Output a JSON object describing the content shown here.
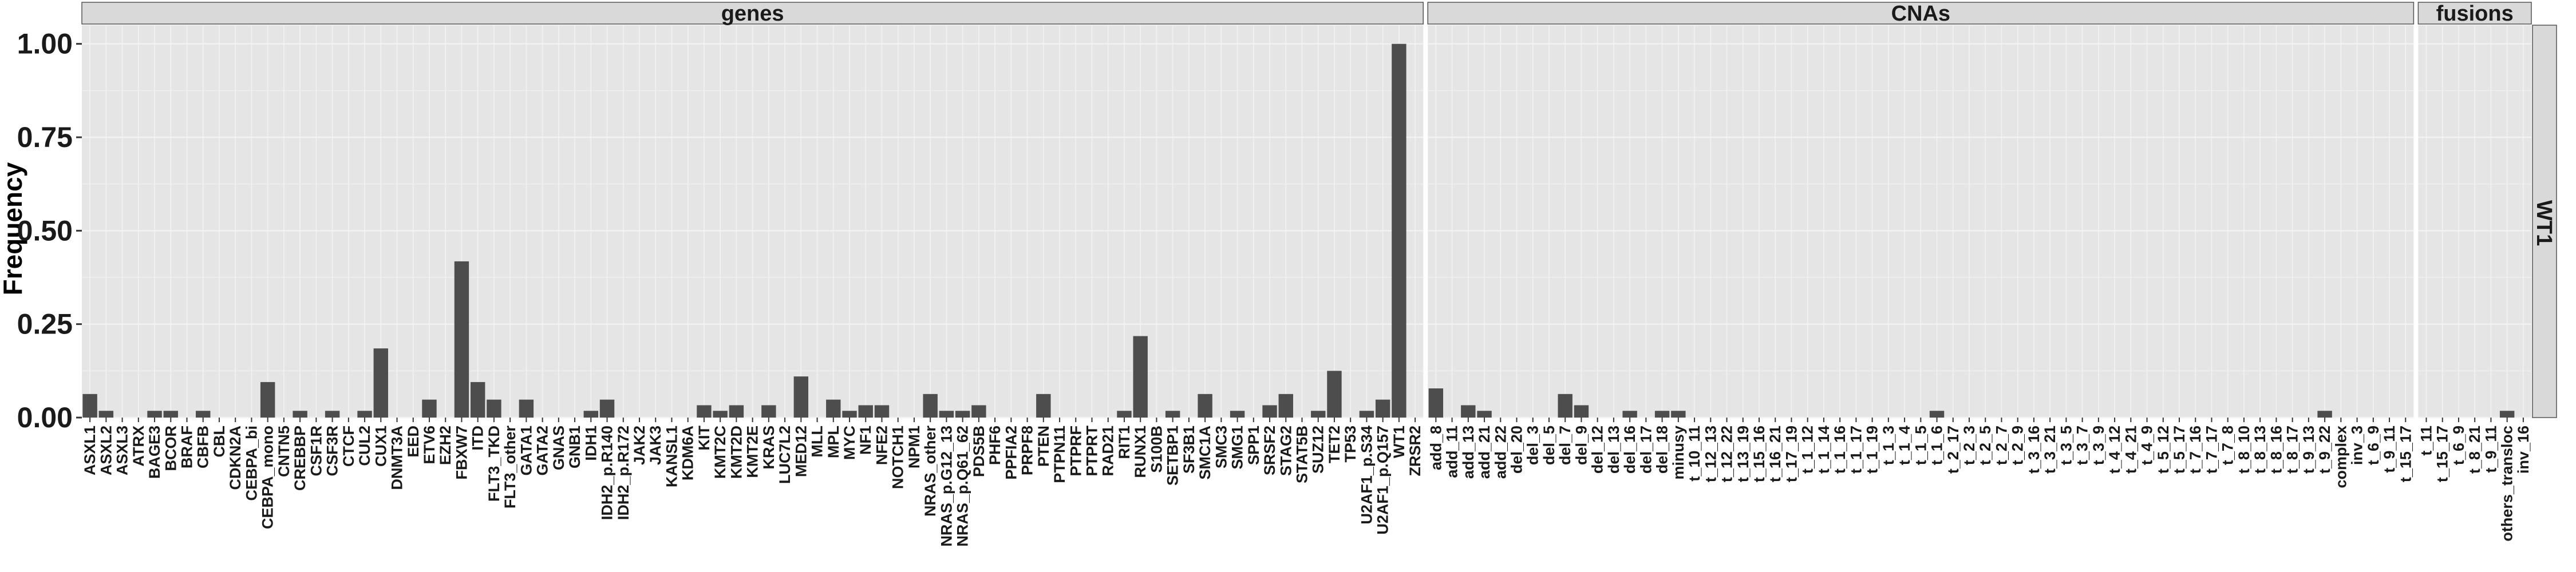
{
  "chart_data": {
    "type": "bar",
    "ylabel": "Frequency",
    "ylim": [
      0,
      1.05
    ],
    "yticks": [
      0.0,
      0.25,
      0.5,
      0.75,
      1.0
    ],
    "ytick_labels": [
      "0.00",
      "0.25",
      "0.50",
      "0.75",
      "1.00"
    ],
    "row_facet_label": "WT1",
    "grid": true,
    "colors": {
      "panel": "#e5e5e5",
      "grid": "#f2f2f2",
      "bar": "#4d4d4d",
      "strip": "#d9d9d9",
      "strip_border": "#555555",
      "text": "#1a1a1a"
    },
    "facets": [
      {
        "name": "genes",
        "categories": [
          "ASXL1",
          "ASXL2",
          "ASXL3",
          "ATRX",
          "BAGE3",
          "BCOR",
          "BRAF",
          "CBFB",
          "CBL",
          "CDKN2A",
          "CEBPA_bi",
          "CEBPA_mono",
          "CNTN5",
          "CREBBP",
          "CSF1R",
          "CSF3R",
          "CTCF",
          "CUL2",
          "CUX1",
          "DNMT3A",
          "EED",
          "ETV6",
          "EZH2",
          "FBXW7",
          "ITD",
          "FLT3_TKD",
          "FLT3_other",
          "GATA1",
          "GATA2",
          "GNAS",
          "GNB1",
          "IDH1",
          "IDH2_p.R140",
          "IDH2_p.R172",
          "JAK2",
          "JAK3",
          "KANSL1",
          "KDM6A",
          "KIT",
          "KMT2C",
          "KMT2D",
          "KMT2E",
          "KRAS",
          "LUC7L2",
          "MED12",
          "MLL",
          "MPL",
          "MYC",
          "NF1",
          "NFE2",
          "NOTCH1",
          "NPM1",
          "NRAS_other",
          "NRAS_p.G12_13",
          "NRAS_p.Q61_62",
          "PDS5B",
          "PHF6",
          "PPFIA2",
          "PRPF8",
          "PTEN",
          "PTPN11",
          "PTPRF",
          "PTPRT",
          "RAD21",
          "RIT1",
          "RUNX1",
          "S100B",
          "SETBP1",
          "SF3B1",
          "SMC1A",
          "SMC3",
          "SMG1",
          "SPP1",
          "SRSF2",
          "STAG2",
          "STAT5B",
          "SUZ12",
          "TET2",
          "TP53",
          "U2AF1_p.S34",
          "U2AF1_p.Q157",
          "WT1",
          "ZRSR2"
        ],
        "values": [
          0.063,
          0.018,
          0,
          0,
          0.018,
          0.018,
          0,
          0.018,
          0,
          0,
          0,
          0.095,
          0,
          0.018,
          0,
          0.018,
          0,
          0.018,
          0.185,
          0,
          0,
          0.048,
          0,
          0.418,
          0.095,
          0.048,
          0,
          0.048,
          0,
          0,
          0,
          0.018,
          0.048,
          0,
          0,
          0,
          0,
          0,
          0.033,
          0.018,
          0.033,
          0,
          0.033,
          0,
          0.11,
          0,
          0.048,
          0.018,
          0.033,
          0.033,
          0,
          0,
          0.063,
          0.018,
          0.018,
          0.033,
          0,
          0,
          0,
          0.063,
          0,
          0,
          0,
          0,
          0.018,
          0.218,
          0,
          0.018,
          0,
          0.063,
          0,
          0.018,
          0,
          0.033,
          0.063,
          0,
          0.018,
          0.125,
          0,
          0.018,
          0.048,
          1.0,
          0
        ]
      },
      {
        "name": "CNAs",
        "categories": [
          "add_8",
          "add_11",
          "add_13",
          "add_21",
          "add_22",
          "del_20",
          "del_3",
          "del_5",
          "del_7",
          "del_9",
          "del_12",
          "del_13",
          "del_16",
          "del_17",
          "del_18",
          "minusy",
          "t_10_11",
          "t_12_13",
          "t_12_22",
          "t_13_19",
          "t_15_16",
          "t_16_21",
          "t_17_19",
          "t_1_12",
          "t_1_14",
          "t_1_16",
          "t_1_17",
          "t_1_19",
          "t_1_3",
          "t_1_4",
          "t_1_5",
          "t_1_6",
          "t_2_17",
          "t_2_3",
          "t_2_5",
          "t_2_7",
          "t_2_9",
          "t_3_16",
          "t_3_21",
          "t_3_5",
          "t_3_7",
          "t_3_9",
          "t_4_12",
          "t_4_21",
          "t_4_9",
          "t_5_12",
          "t_5_17",
          "t_7_16",
          "t_7_17",
          "t_7_8",
          "t_8_10",
          "t_8_13",
          "t_8_16",
          "t_8_17",
          "t_9_13",
          "t_9_22",
          "complex",
          "inv_3",
          "t_6_9",
          "t_9_11",
          "t_15_17"
        ],
        "values": [
          0.078,
          0,
          0.033,
          0.018,
          0,
          0,
          0,
          0,
          0.063,
          0.033,
          0,
          0,
          0.018,
          0,
          0.018,
          0.018,
          0,
          0,
          0,
          0,
          0,
          0,
          0,
          0,
          0,
          0,
          0,
          0,
          0,
          0,
          0,
          0.018,
          0,
          0,
          0,
          0,
          0,
          0,
          0,
          0,
          0,
          0,
          0,
          0,
          0,
          0,
          0,
          0,
          0,
          0,
          0,
          0,
          0,
          0,
          0,
          0.018,
          0,
          0,
          0,
          0,
          0
        ]
      },
      {
        "name": "fusions",
        "categories": [
          "t_11",
          "t_15_17",
          "t_6_9",
          "t_8_21",
          "t_9_11",
          "others_transloc",
          "inv_16"
        ],
        "values": [
          0,
          0,
          0,
          0,
          0,
          0.018,
          0
        ]
      }
    ]
  }
}
